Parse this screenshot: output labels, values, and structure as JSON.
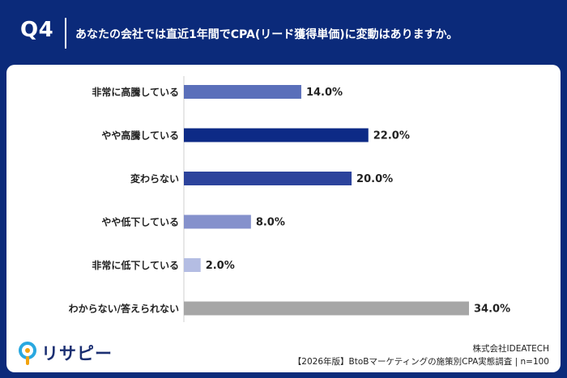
{
  "header": {
    "qnum": "Q4",
    "question": "あなたの会社では直近1年間でCPA(リード獲得単価)に変動はありますか。"
  },
  "chart_data": {
    "type": "bar",
    "orientation": "horizontal",
    "categories": [
      "非常に高騰している",
      "やや高騰している",
      "変わらない",
      "やや低下している",
      "非常に低下している",
      "わからない/答えられない"
    ],
    "values": [
      14.0,
      22.0,
      20.0,
      8.0,
      2.0,
      34.0
    ],
    "value_labels": [
      "14.0%",
      "22.0%",
      "20.0%",
      "8.0%",
      "2.0%",
      "34.0%"
    ],
    "colors": [
      "#5a6fba",
      "#0d2a86",
      "#2c439c",
      "#8591cc",
      "#b4bde3",
      "#a6a6a6"
    ],
    "xlim": [
      0,
      34
    ],
    "title": "",
    "xlabel": "",
    "ylabel": "",
    "grid": false,
    "legend": "none"
  },
  "logo": {
    "name": "リサピー",
    "icon": "pin-icon"
  },
  "footer": {
    "company": "株式会社IDEATECH",
    "source": "【2026年版】BtoBマーケティングの施策別CPA実態調査 | n=100"
  }
}
